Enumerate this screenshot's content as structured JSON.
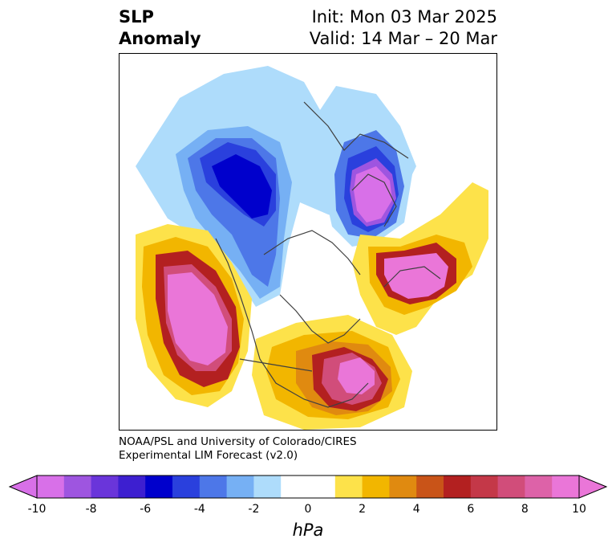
{
  "title": {
    "left_line1": "SLP",
    "left_line2": "Anomaly",
    "right_line1": "Init: Mon 03 Mar 2025",
    "right_line2": "Valid: 14 Mar – 20 Mar"
  },
  "credit": {
    "line1": "NOAA/PSL and University of Colorado/CIRES",
    "line2": "Experimental LIM Forecast (v2.0)"
  },
  "colorbar": {
    "unit": "hPa",
    "ticks": [
      "-10",
      "-8",
      "-6",
      "-4",
      "-2",
      "0",
      "2",
      "4",
      "6",
      "8",
      "10"
    ],
    "colors": [
      "#d870e8",
      "#9e55e0",
      "#6a35da",
      "#3d1fd0",
      "#0000cc",
      "#2a40dd",
      "#4d77e8",
      "#76b0f4",
      "#aedcfb",
      "#ffffff",
      "#ffffff",
      "#fde24a",
      "#f2b600",
      "#e08a10",
      "#c95418",
      "#b32020",
      "#c43848",
      "#d14d7a",
      "#dd62a8",
      "#ea76d8"
    ],
    "min_arrow": "#d870e8",
    "max_arrow": "#ea76d8"
  },
  "map": {
    "anomalies": [
      {
        "label": "north-pacific-high",
        "peak_hpa": 10
      },
      {
        "label": "eastern-us-high",
        "peak_hpa": 9
      },
      {
        "label": "north-atlantic-high",
        "peak_hpa": 10
      },
      {
        "label": "northern-europe-low",
        "peak_hpa": -10
      },
      {
        "label": "northwest-canada-low",
        "peak_hpa": -6
      }
    ]
  }
}
